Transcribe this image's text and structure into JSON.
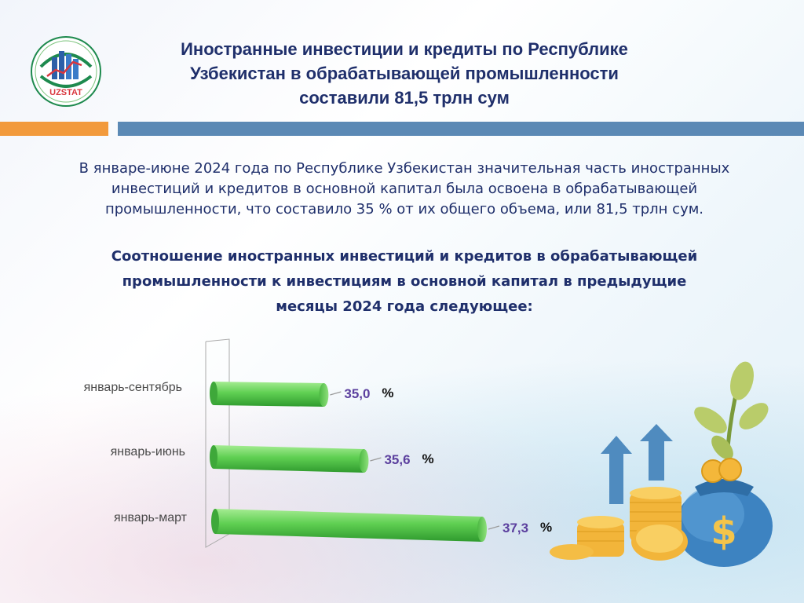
{
  "header": {
    "logo_text": "UZSTAT",
    "title_lines": [
      "Иностранные инвестиции и кредиты по Республике",
      "Узбекистан в обрабатывающей промышленности",
      "составили 81,5 трлн сум"
    ]
  },
  "intro_lines": [
    "В январе-июне 2024 года по Республике Узбекистан значительная часть иностранных",
    "инвестиций и кредитов в основной капитал была освоена в обрабатывающей",
    "промышленности, что составило 35 % от их общего объема, или 81,5 трлн сум."
  ],
  "subheading_lines": [
    "Соотношение иностранных инвестиций и кредитов в обрабатывающей",
    "промышленности к инвестициям в основной капитал в предыдущие",
    "месяцы 2024 года следующее:"
  ],
  "chart_data": {
    "type": "bar",
    "orientation": "horizontal",
    "categories": [
      "январь-сентябрь",
      "январь-июнь",
      "январь-март"
    ],
    "values": [
      35.0,
      35.6,
      37.3
    ],
    "value_labels": [
      "35,0",
      "35,6",
      "37,3"
    ],
    "unit": "%",
    "bar_color": "#5fcf52",
    "value_label_color": "#5b3f9e",
    "label_color": "#4a4a4a"
  },
  "colors": {
    "title": "#1f2f6b",
    "accent_orange": "#f29a3c",
    "accent_blue": "#5b89b5"
  },
  "illustration": {
    "icons": [
      "arrow-up-icon",
      "coin-stack-icon",
      "money-bag-icon",
      "dollar-sign-icon",
      "sprout-icon"
    ],
    "dollar_glyph": "$"
  }
}
